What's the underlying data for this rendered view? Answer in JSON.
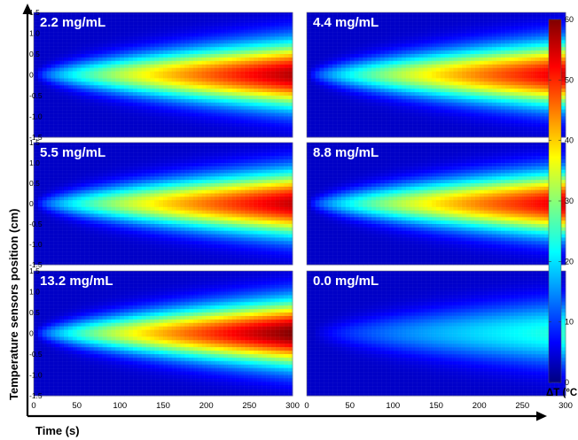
{
  "chart_data": {
    "type": "heatmap",
    "xlabel": "Time (s)",
    "ylabel": "Temperature sensors position (cm)",
    "x_ticks": [
      "0",
      "50",
      "100",
      "150",
      "200",
      "250",
      "300"
    ],
    "y_ticks": [
      "1.5",
      "1.0",
      "0.5",
      "0",
      "-0.5",
      "-1.0",
      "-1.5"
    ],
    "x_range": [
      0,
      300
    ],
    "y_range": [
      -1.5,
      1.5
    ],
    "colorbar": {
      "label": "ΔT (°C",
      "ticks": [
        "0",
        "10",
        "20",
        "30",
        "40",
        "50",
        "60"
      ],
      "range": [
        0,
        60
      ]
    },
    "panels": [
      {
        "label": "2.2 mg/mL",
        "max_dT": 57
      },
      {
        "label": "4.4 mg/mL",
        "max_dT": 55
      },
      {
        "label": "5.5 mg/mL",
        "max_dT": 56
      },
      {
        "label": "8.8 mg/mL",
        "max_dT": 55
      },
      {
        "label": "13.2 mg/mL",
        "max_dT": 60
      },
      {
        "label": "0.0 mg/mL",
        "max_dT": 25
      }
    ]
  }
}
